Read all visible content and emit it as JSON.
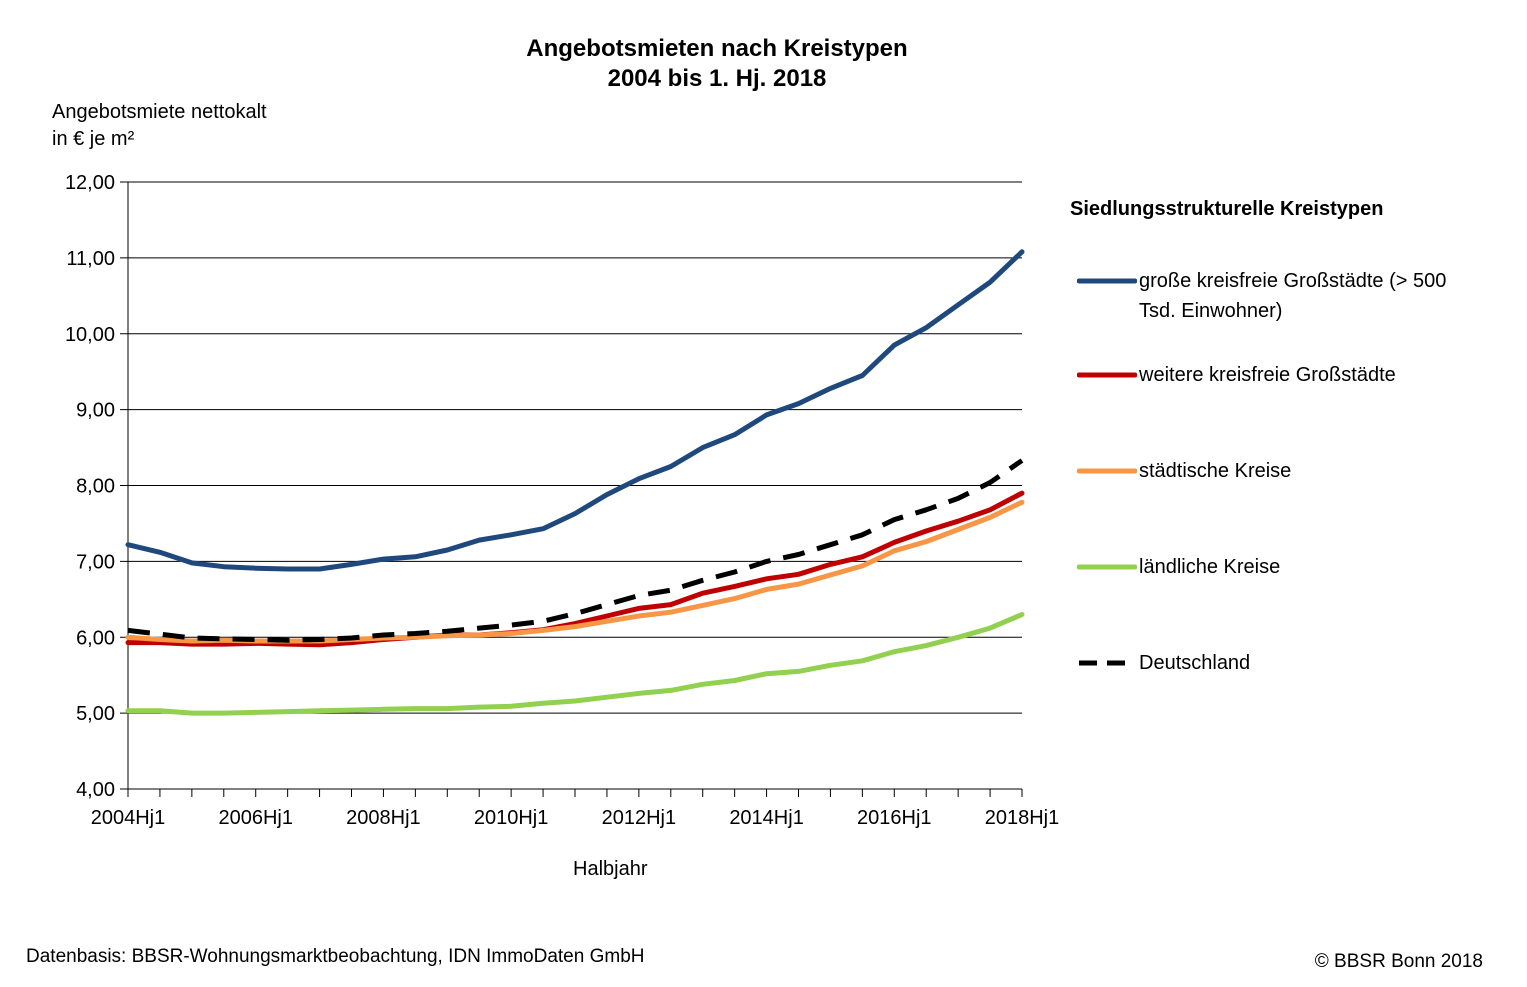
{
  "title": {
    "line1": "Angebotsmieten nach Kreistypen",
    "line2": "2004 bis 1. Hj. 2018"
  },
  "source": "Datenbasis: BBSR-Wohnungsmarktbeobachtung, IDN ImmoDaten GmbH",
  "copyright": "© BBSR Bonn 2018",
  "chart_data": {
    "type": "line",
    "ylabel": [
      "Angebotsmiete nettokalt",
      "in € je m²"
    ],
    "xlabel": "Halbjahr",
    "legend_title": "Siedlungsstrukturelle Kreistypen",
    "legend_position": "right",
    "ylim": [
      4,
      12
    ],
    "yticks": [
      "4,00",
      "5,00",
      "6,00",
      "7,00",
      "8,00",
      "9,00",
      "10,00",
      "11,00",
      "12,00"
    ],
    "grid": "horizontal",
    "x": [
      "2004Hj1",
      "2004Hj2",
      "2005Hj1",
      "2005Hj2",
      "2006Hj1",
      "2006Hj2",
      "2007Hj1",
      "2007Hj2",
      "2008Hj1",
      "2008Hj2",
      "2009Hj1",
      "2009Hj2",
      "2010Hj1",
      "2010Hj2",
      "2011Hj1",
      "2011Hj2",
      "2012Hj1",
      "2012Hj2",
      "2013Hj1",
      "2013Hj2",
      "2014Hj1",
      "2014Hj2",
      "2015Hj1",
      "2015Hj2",
      "2016Hj1",
      "2016Hj2",
      "2017Hj1",
      "2017Hj2",
      "2018Hj1"
    ],
    "xtick_labels": [
      "2004Hj1",
      "2006Hj1",
      "2008Hj1",
      "2010Hj1",
      "2012Hj1",
      "2014Hj1",
      "2016Hj1",
      "2018Hj1"
    ],
    "xtick_label_every": 4,
    "series": [
      {
        "name": "große kreisfreie Großstädte (> 500 Tsd. Einwohner)",
        "color": "#1F497D",
        "dash": "solid",
        "values": [
          7.22,
          7.12,
          6.98,
          6.93,
          6.91,
          6.9,
          6.9,
          6.96,
          7.03,
          7.06,
          7.15,
          7.28,
          7.35,
          7.43,
          7.63,
          7.88,
          8.09,
          8.25,
          8.5,
          8.67,
          8.93,
          9.08,
          9.28,
          9.45,
          9.85,
          10.08,
          10.38,
          10.68,
          11.08
        ]
      },
      {
        "name": "weitere kreisfreie Großstädte",
        "color": "#C00000",
        "dash": "solid",
        "values": [
          5.93,
          5.93,
          5.91,
          5.91,
          5.92,
          5.91,
          5.9,
          5.93,
          5.97,
          6.0,
          6.03,
          6.03,
          6.06,
          6.1,
          6.18,
          6.28,
          6.38,
          6.43,
          6.58,
          6.67,
          6.77,
          6.83,
          6.96,
          7.06,
          7.25,
          7.4,
          7.53,
          7.68,
          7.9
        ]
      },
      {
        "name": "städtische Kreise",
        "color": "#F79646",
        "dash": "solid",
        "values": [
          6.0,
          5.97,
          5.95,
          5.96,
          5.95,
          5.95,
          5.95,
          5.97,
          5.99,
          6.0,
          6.02,
          6.03,
          6.05,
          6.09,
          6.14,
          6.21,
          6.28,
          6.33,
          6.42,
          6.51,
          6.63,
          6.7,
          6.82,
          6.94,
          7.14,
          7.26,
          7.42,
          7.58,
          7.78
        ]
      },
      {
        "name": "ländliche Kreise",
        "color": "#92D050",
        "dash": "solid",
        "values": [
          5.03,
          5.03,
          5.0,
          5.0,
          5.01,
          5.02,
          5.03,
          5.04,
          5.05,
          5.06,
          5.06,
          5.08,
          5.09,
          5.13,
          5.16,
          5.21,
          5.26,
          5.3,
          5.38,
          5.43,
          5.52,
          5.55,
          5.63,
          5.69,
          5.81,
          5.89,
          6.0,
          6.12,
          6.3
        ]
      },
      {
        "name": "Deutschland",
        "color": "#000000",
        "dash": "dashed",
        "values": [
          6.09,
          6.04,
          5.99,
          5.98,
          5.97,
          5.96,
          5.97,
          5.99,
          6.03,
          6.05,
          6.08,
          6.12,
          6.16,
          6.21,
          6.31,
          6.43,
          6.55,
          6.62,
          6.75,
          6.86,
          7.0,
          7.09,
          7.22,
          7.35,
          7.55,
          7.68,
          7.83,
          8.04,
          8.33
        ]
      }
    ]
  }
}
